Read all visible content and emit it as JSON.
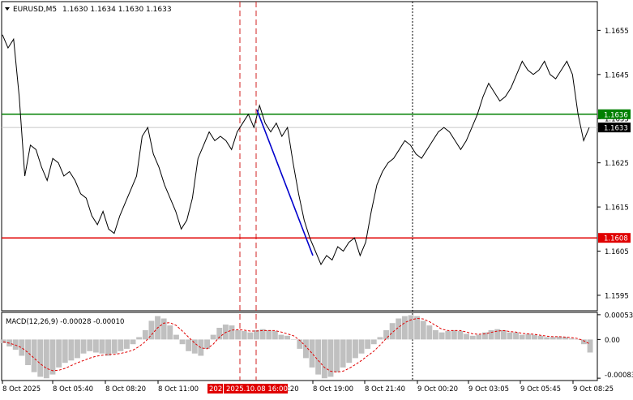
{
  "header": {
    "symbol": "EURUSD,M5",
    "ohlc": "1.1630 1.1634 1.1630 1.1633"
  },
  "macd": {
    "label": "MACD(12,26,9) -0.00028 -0.00010"
  },
  "colors": {
    "price": "#000000",
    "support": "#e00000",
    "resistance": "#008000",
    "trendline": "#0000cc",
    "histogram": "#c0c0c0",
    "signal": "#e00000",
    "grid": "#c8c8c8"
  },
  "chart_data": [
    {
      "type": "line",
      "title": "",
      "series": [
        {
          "name": "",
          "values": [
            1.1654,
            1.1651,
            1.1653,
            1.164,
            1.1622,
            1.1629,
            1.1628,
            1.1624,
            1.1621,
            1.1626,
            1.1625,
            1.1622,
            1.1623,
            1.1621,
            1.1618,
            1.1617,
            1.1613,
            1.1611,
            1.1614,
            1.161,
            1.1609,
            1.1613,
            1.1616,
            1.1619,
            1.1622,
            1.1631,
            1.1633,
            1.1627,
            1.1624,
            1.162,
            1.1617,
            1.1614,
            1.161,
            1.1612,
            1.1617,
            1.1626,
            1.1629,
            1.1632,
            1.163,
            1.1631,
            1.163,
            1.1628,
            1.1632,
            1.1634,
            1.1636,
            1.1633,
            1.1638,
            1.1634,
            1.1632,
            1.1634,
            1.1631,
            1.1633,
            1.1625,
            1.1618,
            1.1612,
            1.1608,
            1.1605,
            1.1602,
            1.1604,
            1.1603,
            1.1606,
            1.1605,
            1.1607,
            1.1608,
            1.1604,
            1.1607,
            1.1614,
            1.162,
            1.1623,
            1.1625,
            1.1626,
            1.1628,
            1.163,
            1.1629,
            1.1627,
            1.1626,
            1.1628,
            1.163,
            1.1632,
            1.1633,
            1.1632,
            1.163,
            1.1628,
            1.163,
            1.1633,
            1.1636,
            1.164,
            1.1643,
            1.1641,
            1.1639,
            1.164,
            1.1642,
            1.1645,
            1.1648,
            1.1646,
            1.1645,
            1.1646,
            1.1648,
            1.1645,
            1.1644,
            1.1646,
            1.1648,
            1.1645,
            1.1636,
            1.163,
            1.1633
          ]
        }
      ],
      "y_ticks": [
        1.1655,
        1.1645,
        1.1635,
        1.1625,
        1.1615,
        1.1605,
        1.1595
      ],
      "ylim": [
        1.15915,
        1.16615
      ],
      "x_ticks": [
        "8 Oct 2025",
        "8 Oct 05:40",
        "8 Oct 08:20",
        "8 Oct 11:00",
        "",
        "8 Oct 19:00",
        "8 Oct 21:40",
        "9 Oct 00:20",
        "9 Oct 03:05",
        "9 Oct 05:45",
        "9 Oct 08:25"
      ],
      "x_tick_fragment": ":20",
      "x_highlight_label": "2025.10.08 16:00",
      "x_highlight_prefix": "202",
      "horizontal_lines": [
        {
          "value": 1.1636,
          "label": "1.1636",
          "color": "#008000"
        },
        {
          "value": 1.1608,
          "label": "1.1608",
          "color": "#e00000"
        }
      ],
      "current_price": {
        "value": 1.1633,
        "label": "1.1633"
      },
      "trendline": {
        "from": 1.1637,
        "to": 1.1604
      },
      "grid": false
    },
    {
      "type": "bar",
      "title": "",
      "series": [
        {
          "name": "",
          "values": [
            -8e-05,
            -0.00015,
            -0.00022,
            -0.00035,
            -0.00055,
            -0.0007,
            -0.0008,
            -0.00083,
            -0.00075,
            -0.0006,
            -0.0005,
            -0.00045,
            -0.0004,
            -0.0003,
            -0.00025,
            -0.00028,
            -0.0003,
            -0.00035,
            -0.0003,
            -0.00025,
            -0.0002,
            -0.0001,
            5e-05,
            0.0002,
            0.0004,
            0.0005,
            0.00045,
            0.0003,
            0.0001,
            -0.0001,
            -0.00025,
            -0.0003,
            -0.00035,
            -0.0002,
            0.0001,
            0.00025,
            0.00032,
            0.0003,
            0.0002,
            0.00018,
            0.00015,
            0.0002,
            0.00022,
            0.0002,
            0.00018,
            0.0001,
            8e-05,
            0.0,
            -0.0002,
            -0.0004,
            -0.0006,
            -0.00075,
            -0.00083,
            -0.0008,
            -0.0007,
            -0.0006,
            -0.0005,
            -0.0004,
            -0.0003,
            -0.0002,
            -0.0001,
            5e-05,
            0.0002,
            0.00035,
            0.00045,
            0.0005,
            0.00052,
            0.0005,
            0.0004,
            0.0003,
            0.0002,
            0.00015,
            0.00018,
            0.0002,
            0.00018,
            0.00012,
            8e-05,
            0.0001,
            0.00015,
            0.0002,
            0.00022,
            0.0002,
            0.00015,
            0.00015,
            0.0001,
            0.00012,
            0.0001,
            8e-05,
            5e-05,
            5e-05,
            6e-05,
            5e-05,
            2e-05,
            0.0,
            -0.0001,
            -0.00028
          ]
        },
        {
          "name": "",
          "type": "line",
          "values": [
            -5e-05,
            -8e-05,
            -0.00012,
            -0.00018,
            -0.00028,
            -0.0004,
            -0.00052,
            -0.00062,
            -0.00067,
            -0.00066,
            -0.00062,
            -0.00056,
            -0.0005,
            -0.00045,
            -0.0004,
            -0.00036,
            -0.00034,
            -0.00032,
            -0.00032,
            -0.0003,
            -0.00027,
            -0.00023,
            -0.00015,
            -5e-05,
            0.0001,
            0.00025,
            0.00035,
            0.00036,
            0.0003,
            0.00018,
            5e-05,
            -8e-05,
            -0.00018,
            -0.0002,
            -0.0001,
            5e-05,
            0.00015,
            0.0002,
            0.00021,
            0.0002,
            0.00018,
            0.00018,
            0.00019,
            0.00019,
            0.00019,
            0.00016,
            0.00012,
            8e-05,
            -2e-05,
            -0.00015,
            -0.0003,
            -0.00045,
            -0.0006,
            -0.00068,
            -0.0007,
            -0.00068,
            -0.00062,
            -0.00054,
            -0.00045,
            -0.00035,
            -0.00025,
            -0.00012,
            2e-05,
            0.00015,
            0.00026,
            0.00036,
            0.00042,
            0.00045,
            0.00044,
            0.00038,
            0.0003,
            0.00022,
            0.00019,
            0.00019,
            0.00019,
            0.00016,
            0.00012,
            0.00011,
            0.00012,
            0.00015,
            0.00018,
            0.00019,
            0.00017,
            0.00016,
            0.00013,
            0.00012,
            0.00011,
            9e-05,
            7e-05,
            6e-05,
            6e-05,
            5e-05,
            4e-05,
            2e-05,
            -3e-05,
            -0.0001
          ]
        }
      ],
      "y_ticks": [
        "0.00053",
        "0.00",
        "-0.00083"
      ],
      "ylim": [
        -0.00088,
        0.00058
      ]
    }
  ]
}
